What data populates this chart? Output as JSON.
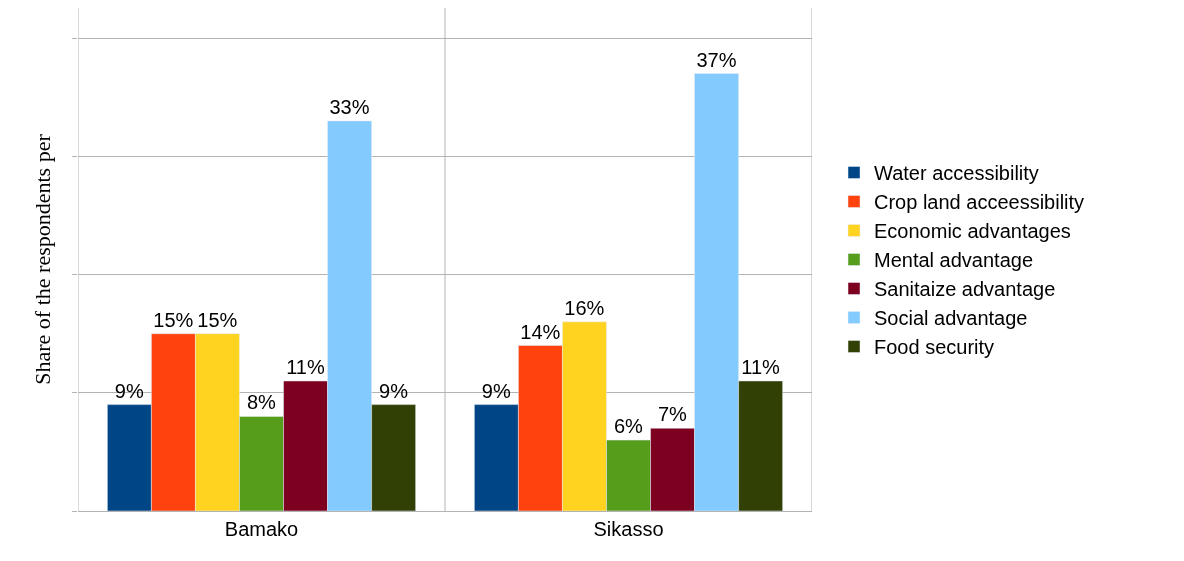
{
  "chart_data": {
    "type": "bar",
    "ylabel": "Share of the respondents per",
    "categories": [
      "Bamako",
      "Sikasso"
    ],
    "series": [
      {
        "name": "Water accessibility",
        "color": "#004586",
        "values": [
          9,
          9
        ],
        "value_labels": [
          "9%",
          "9%"
        ]
      },
      {
        "name": "Crop land acceessibility",
        "color": "#ff420e",
        "values": [
          15,
          14
        ],
        "value_labels": [
          "15%",
          "14%"
        ]
      },
      {
        "name": "Economic advantages",
        "color": "#ffd320",
        "values": [
          15,
          16
        ],
        "value_labels": [
          "15%",
          "16%"
        ]
      },
      {
        "name": "Mental advantage",
        "color": "#579d1c",
        "values": [
          8,
          6
        ],
        "value_labels": [
          "8%",
          "6%"
        ]
      },
      {
        "name": "Sanitaize advantage",
        "color": "#7e0021",
        "values": [
          11,
          7
        ],
        "value_labels": [
          "11%",
          "7%"
        ]
      },
      {
        "name": "Social advantage",
        "color": "#83caff",
        "values": [
          33,
          37
        ],
        "value_labels": [
          "33%",
          "37%"
        ]
      },
      {
        "name": "Food security",
        "color": "#314004",
        "values": [
          9,
          11
        ],
        "value_labels": [
          "9%",
          "11%"
        ]
      }
    ],
    "grid": true,
    "legend": "right",
    "tick_labels": "x"
  }
}
